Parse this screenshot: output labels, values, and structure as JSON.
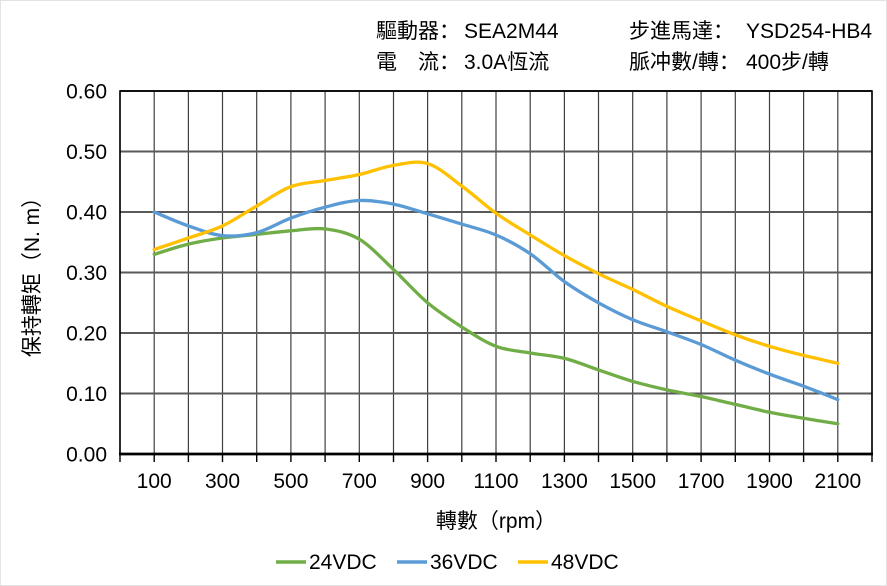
{
  "header": {
    "driver": {
      "label": "驅動器：",
      "value": "SEA2M44"
    },
    "current": {
      "label": "電　流：",
      "value": "3.0A恆流"
    },
    "motor": {
      "label": "步進馬達：",
      "value": "YSD254-HB4"
    },
    "pulses": {
      "label": "脈冲數/轉：",
      "value": "400步/轉"
    }
  },
  "chart_data": {
    "type": "line",
    "title": "",
    "xlabel": "轉數（rpm）",
    "ylabel": "保持轉矩（N. m）",
    "x": [
      100,
      200,
      300,
      400,
      500,
      600,
      700,
      800,
      900,
      1000,
      1100,
      1200,
      1300,
      1400,
      1500,
      1600,
      1700,
      1800,
      1900,
      2000,
      2100
    ],
    "series": [
      {
        "name": "24VDC",
        "color": "#70AD47",
        "values": [
          0.33,
          0.347,
          0.357,
          0.363,
          0.369,
          0.372,
          0.355,
          0.305,
          0.25,
          0.21,
          0.178,
          0.167,
          0.158,
          0.139,
          0.12,
          0.106,
          0.095,
          0.082,
          0.069,
          0.059,
          0.05
        ]
      },
      {
        "name": "36VDC",
        "color": "#5B9BD5",
        "values": [
          0.4,
          0.377,
          0.361,
          0.366,
          0.39,
          0.408,
          0.419,
          0.413,
          0.397,
          0.38,
          0.362,
          0.331,
          0.285,
          0.25,
          0.222,
          0.202,
          0.181,
          0.155,
          0.132,
          0.112,
          0.09
        ]
      },
      {
        "name": "48VDC",
        "color": "#FFC000",
        "values": [
          0.338,
          0.357,
          0.377,
          0.41,
          0.442,
          0.452,
          0.462,
          0.477,
          0.48,
          0.443,
          0.398,
          0.362,
          0.328,
          0.298,
          0.272,
          0.244,
          0.22,
          0.197,
          0.178,
          0.163,
          0.15
        ]
      }
    ],
    "xlim": [
      0,
      2200
    ],
    "ylim": [
      0,
      0.6
    ],
    "x_grid_step": 100,
    "x_tick_labels": [
      100,
      300,
      500,
      700,
      900,
      1100,
      1300,
      1500,
      1700,
      1900,
      2100
    ],
    "y_ticks": [
      0.0,
      0.1,
      0.2,
      0.3,
      0.4,
      0.5,
      0.6
    ],
    "y_tick_decimals": 2,
    "grid": true,
    "legend_position": "bottom"
  }
}
